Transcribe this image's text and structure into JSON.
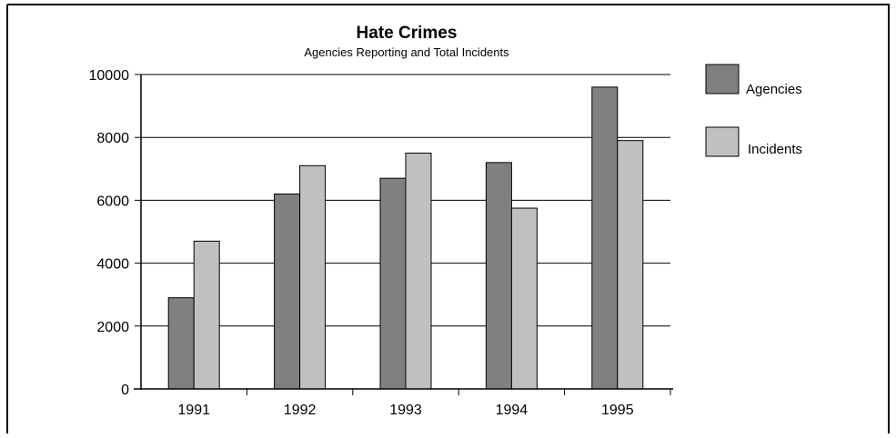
{
  "chart_data": {
    "type": "bar",
    "title": "Hate Crimes",
    "subtitle": "Agencies Reporting and Total Incidents",
    "xlabel": "",
    "ylabel": "",
    "categories": [
      "1991",
      "1992",
      "1993",
      "1994",
      "1995"
    ],
    "series": [
      {
        "name": "Agencies",
        "color": "#808080",
        "values": [
          2900,
          6200,
          6700,
          7200,
          9600
        ]
      },
      {
        "name": "Incidents",
        "color": "#c0c0c0",
        "values": [
          4700,
          7100,
          7500,
          5750,
          7900
        ]
      }
    ],
    "ylim": [
      0,
      10000
    ],
    "yticks": [
      "0",
      "2000",
      "4000",
      "6000",
      "8000",
      "10000"
    ],
    "grid": true,
    "legend_position": "right"
  }
}
